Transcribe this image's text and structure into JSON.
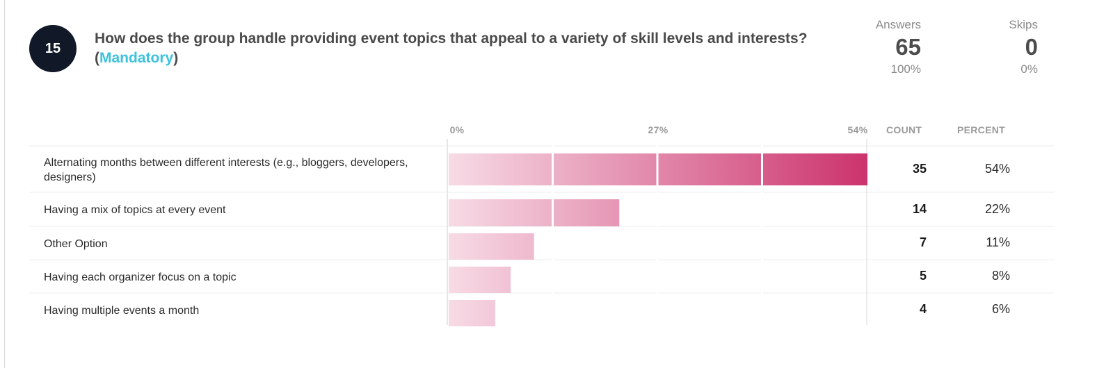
{
  "question": {
    "number": "15",
    "title_text": "How does the group handle providing event topics that appeal to a variety of skill levels and interests? (",
    "mandatory_label": "Mandatory",
    "title_suffix": ")"
  },
  "stats": {
    "answers_label": "Answers",
    "answers_value": "65",
    "answers_percent": "100%",
    "skips_label": "Skips",
    "skips_value": "0",
    "skips_percent": "0%"
  },
  "table_headers": {
    "count": "COUNT",
    "percent": "PERCENT"
  },
  "chart_data": {
    "type": "bar",
    "orientation": "horizontal",
    "xlim": [
      0,
      54
    ],
    "ticks": [
      {
        "value": 0,
        "label": "0%"
      },
      {
        "value": 27,
        "label": "27%"
      },
      {
        "value": 54,
        "label": "54%"
      }
    ],
    "categories": [
      "Alternating months between different interests (e.g., bloggers, developers, designers)",
      "Having a mix of topics at every event",
      "Other Option",
      "Having each organizer focus on a topic",
      "Having multiple events a month"
    ],
    "counts": [
      "35",
      "14",
      "7",
      "5",
      "4"
    ],
    "percent_labels": [
      "54%",
      "22%",
      "11%",
      "8%",
      "6%"
    ],
    "values": [
      54,
      22,
      11,
      8,
      6
    ],
    "colors": {
      "bar_start": "#f7dbe5",
      "bar_end": "#cc336d",
      "grid": "#e6e6e6",
      "divider": "#ececec"
    }
  }
}
